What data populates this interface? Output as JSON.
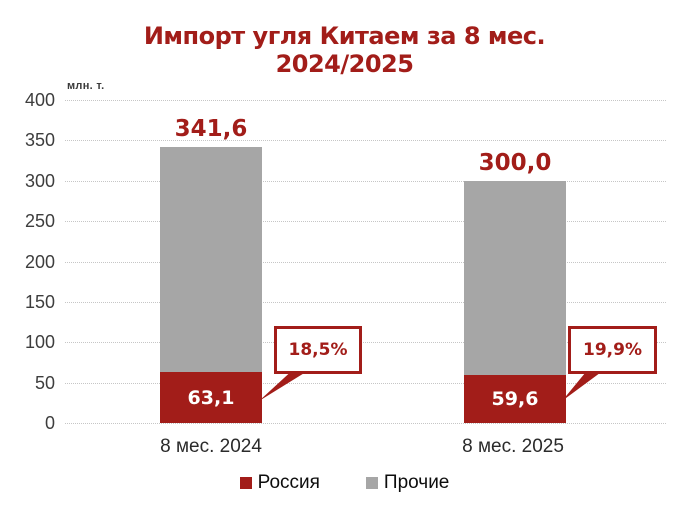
{
  "colors": {
    "accent_red": "#A21D19",
    "series_gray": "#A6A6A6",
    "gridline": "#C6C6C6",
    "axis_text": "#3D3D3D"
  },
  "chart_data": {
    "type": "bar",
    "stacked": true,
    "title_line1": "Импорт угля Китаем за 8 мес.",
    "title_line2": "2024/2025",
    "unit_label": "млн. т.",
    "categories": [
      "8 мес. 2024",
      "8 мес. 2025"
    ],
    "series": [
      {
        "name": "Россия",
        "color": "#A21D19",
        "values": [
          63.1,
          59.6
        ],
        "value_labels": [
          "63,1",
          "59,6"
        ]
      },
      {
        "name": "Прочие",
        "color": "#A6A6A6",
        "values": [
          278.5,
          240.4
        ]
      }
    ],
    "totals": [
      341.6,
      300.0
    ],
    "total_labels": [
      "341,6",
      "300,0"
    ],
    "share_labels": [
      "18,5%",
      "19,9%"
    ],
    "ylim": [
      0,
      400
    ],
    "ytick_step": 50,
    "ytick_labels": [
      "400",
      "350",
      "300",
      "250",
      "200",
      "150",
      "100",
      "50",
      "0"
    ],
    "grid": "horizontal-dotted",
    "legend_position": "bottom"
  }
}
